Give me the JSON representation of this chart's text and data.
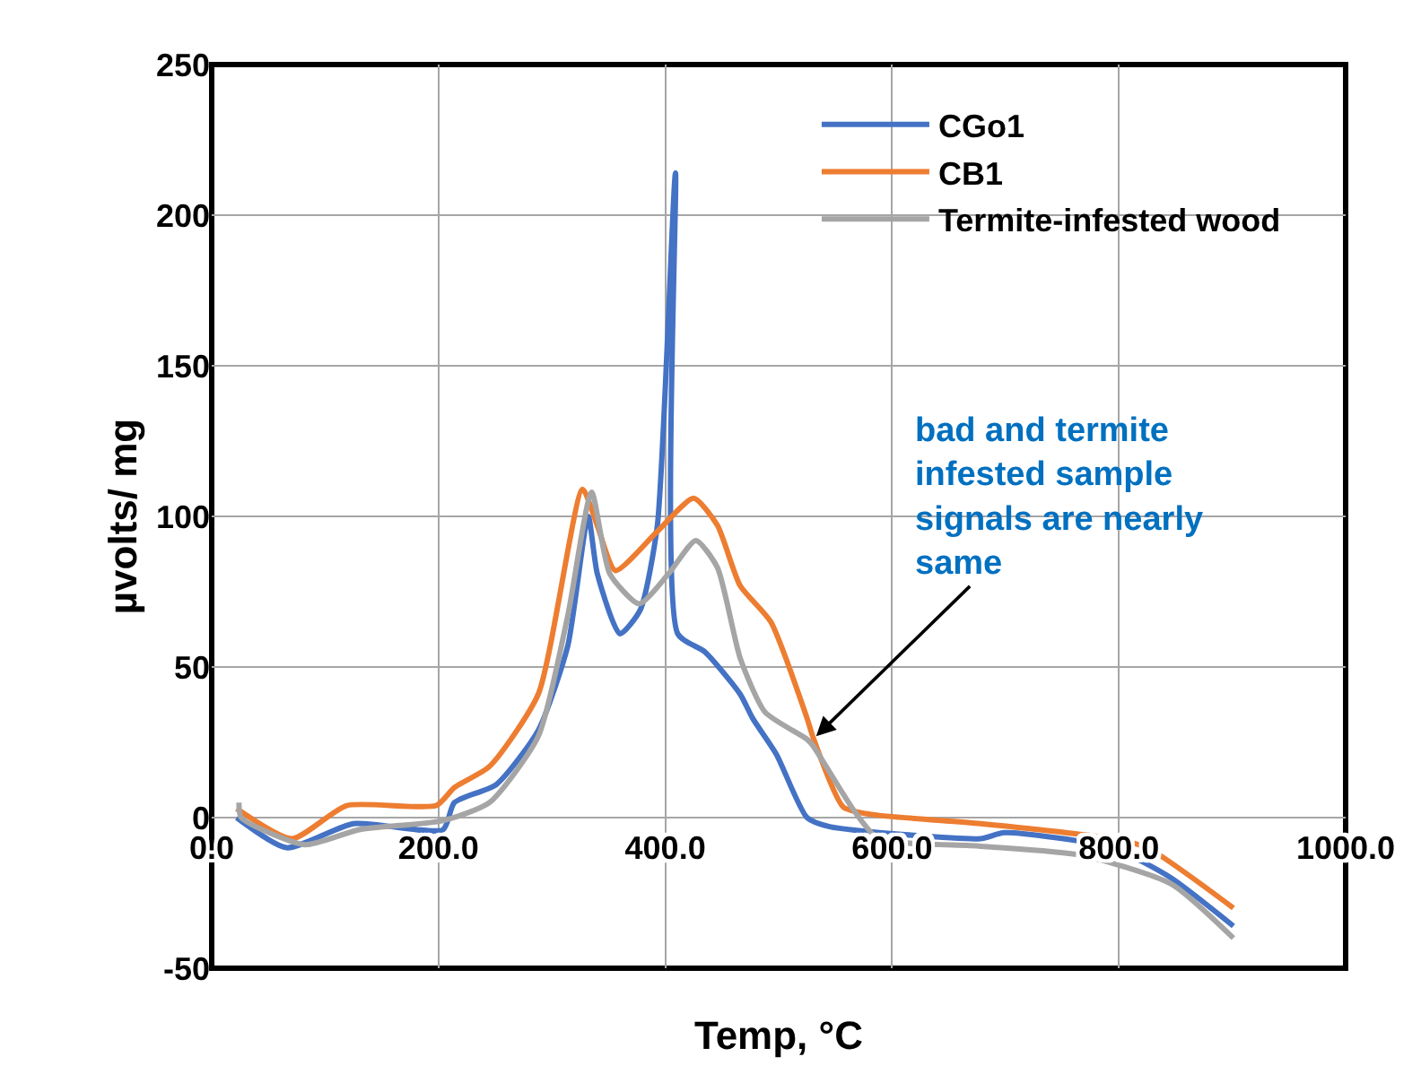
{
  "chart_data": {
    "type": "line",
    "xlabel": "Temp, °C",
    "ylabel": "µvolts/ mg",
    "xlim": [
      0,
      1000
    ],
    "ylim": [
      -50,
      250
    ],
    "xticks": [
      {
        "value": 0,
        "label": "0.0"
      },
      {
        "value": 200,
        "label": "200.0"
      },
      {
        "value": 400,
        "label": "400.0"
      },
      {
        "value": 600,
        "label": "600.0"
      },
      {
        "value": 800,
        "label": "800.0"
      },
      {
        "value": 1000,
        "label": "1000.0"
      }
    ],
    "yticks": [
      -50,
      0,
      50,
      100,
      150,
      200,
      250
    ],
    "grid": true,
    "legend": "top right",
    "marker": "none",
    "line_style": "solid",
    "annotations": [
      {
        "text": "bad and termite infested sample signals are nearly same",
        "x": 533,
        "y": 27
      }
    ],
    "series": [
      {
        "name": "CGo1",
        "color": "#4472c4",
        "x": [
          22,
          66,
          125,
          204,
          214,
          251,
          288,
          314,
          332,
          340,
          360,
          378,
          393,
          409,
          411,
          435,
          466,
          477,
          498,
          525,
          545,
          678,
          699,
          794,
          846,
          901
        ],
        "values": [
          0,
          -10,
          -2,
          -4,
          5,
          11,
          29,
          57,
          100,
          81,
          61,
          69,
          97,
          214,
          61,
          55,
          41,
          33,
          21,
          0,
          -3,
          -7,
          -5,
          -10,
          -20,
          -36
        ]
      },
      {
        "name": "CB1",
        "color": "#ed7d31",
        "x": [
          22,
          71,
          119,
          198,
          214,
          245,
          288,
          327,
          340,
          356,
          393,
          425,
          446,
          466,
          493,
          525,
          530,
          557,
          583,
          678,
          794,
          825,
          901
        ],
        "values": [
          3,
          -7,
          4,
          4,
          10,
          17,
          41,
          109,
          97,
          82,
          95,
          106,
          97,
          77,
          65,
          33,
          27,
          3.5,
          1,
          -2,
          -7,
          -10,
          -30
        ]
      },
      {
        "name": "Termite-infested wood",
        "color": "#a5a5a5",
        "x": [
          24,
          26,
          82,
          130,
          204,
          245,
          288,
          314,
          335,
          351,
          377,
          403,
          427,
          446,
          466,
          488,
          525,
          530,
          567,
          588,
          678,
          767,
          846,
          901
        ],
        "values": [
          5,
          0,
          -9,
          -4,
          -1,
          5,
          27,
          67,
          108,
          81,
          71,
          81,
          92,
          83,
          53,
          35,
          26,
          24,
          2,
          -7,
          -9.5,
          -12.5,
          -22,
          -40
        ]
      }
    ]
  }
}
